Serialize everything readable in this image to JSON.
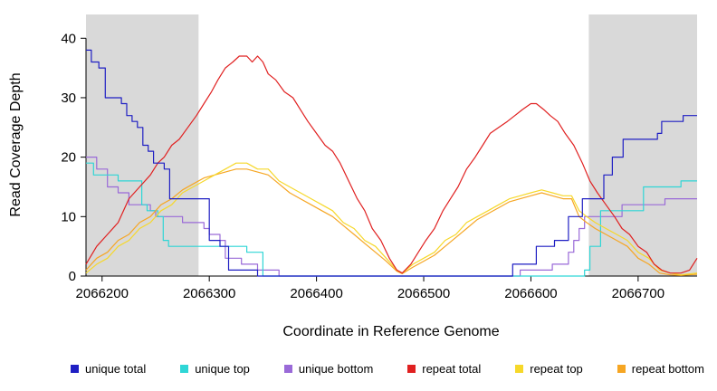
{
  "chart_data": {
    "type": "line",
    "title": "",
    "xlabel": "Coordinate in Reference Genome",
    "ylabel": "Read Coverage Depth",
    "xlim": [
      2066185,
      2066755
    ],
    "ylim": [
      0,
      44
    ],
    "xticks": [
      2066200,
      2066300,
      2066400,
      2066500,
      2066600,
      2066700
    ],
    "yticks": [
      0,
      10,
      20,
      30,
      40
    ],
    "grid": false,
    "legend_position": "bottom",
    "shade_color": "#d9d9d9",
    "background": "#ffffff",
    "shaded_regions": [
      [
        2066185,
        2066290
      ],
      [
        2066654,
        2066755
      ]
    ],
    "draw_order": [
      2,
      1,
      5,
      4,
      3,
      0
    ],
    "series": [
      {
        "name": "unique-total",
        "label": "unique total",
        "color": "#1f1fc3",
        "step": true,
        "points": [
          [
            2066185,
            38
          ],
          [
            2066190,
            36
          ],
          [
            2066197,
            35
          ],
          [
            2066203,
            30
          ],
          [
            2066218,
            29
          ],
          [
            2066223,
            27
          ],
          [
            2066228,
            26
          ],
          [
            2066233,
            25
          ],
          [
            2066238,
            22
          ],
          [
            2066243,
            21
          ],
          [
            2066248,
            19
          ],
          [
            2066258,
            18
          ],
          [
            2066263,
            13
          ],
          [
            2066295,
            13
          ],
          [
            2066300,
            6
          ],
          [
            2066310,
            5
          ],
          [
            2066318,
            1
          ],
          [
            2066340,
            1
          ],
          [
            2066345,
            0
          ],
          [
            2066578,
            0
          ],
          [
            2066583,
            2
          ],
          [
            2066600,
            2
          ],
          [
            2066605,
            5
          ],
          [
            2066618,
            5
          ],
          [
            2066622,
            6
          ],
          [
            2066630,
            6
          ],
          [
            2066635,
            10
          ],
          [
            2066645,
            10
          ],
          [
            2066648,
            13
          ],
          [
            2066665,
            13
          ],
          [
            2066668,
            17
          ],
          [
            2066673,
            17
          ],
          [
            2066676,
            20
          ],
          [
            2066683,
            20
          ],
          [
            2066686,
            23
          ],
          [
            2066715,
            23
          ],
          [
            2066718,
            24
          ],
          [
            2066722,
            26
          ],
          [
            2066738,
            26
          ],
          [
            2066742,
            27
          ],
          [
            2066755,
            27
          ]
        ]
      },
      {
        "name": "unique-top",
        "label": "unique top",
        "color": "#2fd6d6",
        "step": true,
        "points": [
          [
            2066185,
            19
          ],
          [
            2066192,
            17
          ],
          [
            2066210,
            17
          ],
          [
            2066215,
            16
          ],
          [
            2066232,
            16
          ],
          [
            2066237,
            12
          ],
          [
            2066242,
            11
          ],
          [
            2066252,
            10
          ],
          [
            2066257,
            6
          ],
          [
            2066262,
            5
          ],
          [
            2066330,
            5
          ],
          [
            2066335,
            4
          ],
          [
            2066345,
            4
          ],
          [
            2066350,
            0
          ],
          [
            2066645,
            0
          ],
          [
            2066650,
            1
          ],
          [
            2066655,
            5
          ],
          [
            2066662,
            5
          ],
          [
            2066665,
            11
          ],
          [
            2066700,
            11
          ],
          [
            2066705,
            15
          ],
          [
            2066735,
            15
          ],
          [
            2066740,
            16
          ],
          [
            2066755,
            16
          ]
        ]
      },
      {
        "name": "unique-bottom",
        "label": "unique bottom",
        "color": "#9a6ad8",
        "step": true,
        "points": [
          [
            2066185,
            20
          ],
          [
            2066195,
            18
          ],
          [
            2066205,
            15
          ],
          [
            2066215,
            14
          ],
          [
            2066225,
            12
          ],
          [
            2066245,
            11
          ],
          [
            2066250,
            10
          ],
          [
            2066270,
            10
          ],
          [
            2066275,
            9
          ],
          [
            2066295,
            8
          ],
          [
            2066300,
            7
          ],
          [
            2066310,
            6
          ],
          [
            2066315,
            3
          ],
          [
            2066330,
            2
          ],
          [
            2066340,
            2
          ],
          [
            2066345,
            1
          ],
          [
            2066360,
            1
          ],
          [
            2066365,
            0
          ],
          [
            2066585,
            0
          ],
          [
            2066590,
            1
          ],
          [
            2066615,
            1
          ],
          [
            2066620,
            2
          ],
          [
            2066630,
            2
          ],
          [
            2066635,
            4
          ],
          [
            2066640,
            6
          ],
          [
            2066645,
            8
          ],
          [
            2066650,
            10
          ],
          [
            2066680,
            10
          ],
          [
            2066685,
            12
          ],
          [
            2066720,
            12
          ],
          [
            2066725,
            13
          ],
          [
            2066755,
            13
          ]
        ]
      },
      {
        "name": "repeat-total",
        "label": "repeat total",
        "color": "#e02020",
        "step": false,
        "points": [
          [
            2066185,
            2
          ],
          [
            2066195,
            5
          ],
          [
            2066205,
            7
          ],
          [
            2066215,
            9
          ],
          [
            2066225,
            13
          ],
          [
            2066235,
            15
          ],
          [
            2066245,
            17
          ],
          [
            2066252,
            19
          ],
          [
            2066258,
            20
          ],
          [
            2066265,
            22
          ],
          [
            2066272,
            23
          ],
          [
            2066280,
            25
          ],
          [
            2066288,
            27
          ],
          [
            2066295,
            29
          ],
          [
            2066302,
            31
          ],
          [
            2066308,
            33
          ],
          [
            2066315,
            35
          ],
          [
            2066322,
            36
          ],
          [
            2066328,
            37
          ],
          [
            2066335,
            37
          ],
          [
            2066340,
            36
          ],
          [
            2066345,
            37
          ],
          [
            2066350,
            36
          ],
          [
            2066355,
            34
          ],
          [
            2066362,
            33
          ],
          [
            2066370,
            31
          ],
          [
            2066378,
            30
          ],
          [
            2066385,
            28
          ],
          [
            2066392,
            26
          ],
          [
            2066400,
            24
          ],
          [
            2066408,
            22
          ],
          [
            2066415,
            21
          ],
          [
            2066422,
            19
          ],
          [
            2066430,
            16
          ],
          [
            2066438,
            13
          ],
          [
            2066445,
            11
          ],
          [
            2066452,
            8
          ],
          [
            2066460,
            6
          ],
          [
            2066468,
            3
          ],
          [
            2066475,
            1
          ],
          [
            2066480,
            0.5
          ],
          [
            2066488,
            2
          ],
          [
            2066495,
            4
          ],
          [
            2066502,
            6
          ],
          [
            2066510,
            8
          ],
          [
            2066518,
            11
          ],
          [
            2066525,
            13
          ],
          [
            2066532,
            15
          ],
          [
            2066540,
            18
          ],
          [
            2066548,
            20
          ],
          [
            2066555,
            22
          ],
          [
            2066562,
            24
          ],
          [
            2066570,
            25
          ],
          [
            2066578,
            26
          ],
          [
            2066585,
            27
          ],
          [
            2066592,
            28
          ],
          [
            2066600,
            29
          ],
          [
            2066605,
            29
          ],
          [
            2066612,
            28
          ],
          [
            2066618,
            27
          ],
          [
            2066625,
            26
          ],
          [
            2066632,
            24
          ],
          [
            2066640,
            22
          ],
          [
            2066648,
            19
          ],
          [
            2066655,
            16
          ],
          [
            2066662,
            14
          ],
          [
            2066670,
            12
          ],
          [
            2066678,
            10
          ],
          [
            2066685,
            8
          ],
          [
            2066692,
            7
          ],
          [
            2066700,
            5
          ],
          [
            2066708,
            4
          ],
          [
            2066715,
            2
          ],
          [
            2066722,
            1
          ],
          [
            2066730,
            0.5
          ],
          [
            2066740,
            0.5
          ],
          [
            2066748,
            1
          ],
          [
            2066755,
            3
          ]
        ]
      },
      {
        "name": "repeat-top",
        "label": "repeat top",
        "color": "#f6d82a",
        "step": false,
        "points": [
          [
            2066185,
            0.5
          ],
          [
            2066195,
            2
          ],
          [
            2066205,
            3
          ],
          [
            2066215,
            5
          ],
          [
            2066225,
            6
          ],
          [
            2066235,
            8
          ],
          [
            2066245,
            9
          ],
          [
            2066255,
            11
          ],
          [
            2066265,
            12
          ],
          [
            2066275,
            14
          ],
          [
            2066285,
            15
          ],
          [
            2066295,
            16
          ],
          [
            2066305,
            17
          ],
          [
            2066315,
            18
          ],
          [
            2066325,
            19
          ],
          [
            2066335,
            19
          ],
          [
            2066345,
            18
          ],
          [
            2066355,
            18
          ],
          [
            2066365,
            16
          ],
          [
            2066375,
            15
          ],
          [
            2066385,
            14
          ],
          [
            2066395,
            13
          ],
          [
            2066405,
            12
          ],
          [
            2066415,
            11
          ],
          [
            2066425,
            9
          ],
          [
            2066435,
            8
          ],
          [
            2066445,
            6
          ],
          [
            2066455,
            5
          ],
          [
            2066465,
            3
          ],
          [
            2066475,
            1
          ],
          [
            2066480,
            0.5
          ],
          [
            2066490,
            2
          ],
          [
            2066500,
            3
          ],
          [
            2066510,
            4
          ],
          [
            2066520,
            6
          ],
          [
            2066530,
            7
          ],
          [
            2066540,
            9
          ],
          [
            2066550,
            10
          ],
          [
            2066560,
            11
          ],
          [
            2066570,
            12
          ],
          [
            2066580,
            13
          ],
          [
            2066590,
            13.5
          ],
          [
            2066600,
            14
          ],
          [
            2066610,
            14.5
          ],
          [
            2066620,
            14
          ],
          [
            2066630,
            13.5
          ],
          [
            2066638,
            13.5
          ],
          [
            2066645,
            11
          ],
          [
            2066652,
            10
          ],
          [
            2066660,
            9
          ],
          [
            2066670,
            8
          ],
          [
            2066680,
            7
          ],
          [
            2066690,
            6
          ],
          [
            2066700,
            4
          ],
          [
            2066710,
            3
          ],
          [
            2066720,
            1
          ],
          [
            2066730,
            0.5
          ],
          [
            2066740,
            0.2
          ],
          [
            2066755,
            0.5
          ]
        ]
      },
      {
        "name": "repeat-bottom",
        "label": "repeat bottom",
        "color": "#f6a623",
        "step": false,
        "points": [
          [
            2066185,
            1
          ],
          [
            2066195,
            3
          ],
          [
            2066205,
            4
          ],
          [
            2066215,
            6
          ],
          [
            2066225,
            7
          ],
          [
            2066235,
            9
          ],
          [
            2066245,
            10
          ],
          [
            2066255,
            12
          ],
          [
            2066265,
            13
          ],
          [
            2066275,
            14.5
          ],
          [
            2066285,
            15.5
          ],
          [
            2066295,
            16.5
          ],
          [
            2066305,
            17
          ],
          [
            2066315,
            17.5
          ],
          [
            2066325,
            18
          ],
          [
            2066335,
            18
          ],
          [
            2066345,
            17.5
          ],
          [
            2066355,
            17
          ],
          [
            2066365,
            15.5
          ],
          [
            2066375,
            14
          ],
          [
            2066385,
            13
          ],
          [
            2066395,
            12
          ],
          [
            2066405,
            11
          ],
          [
            2066415,
            10
          ],
          [
            2066425,
            8.5
          ],
          [
            2066435,
            7
          ],
          [
            2066445,
            5.5
          ],
          [
            2066455,
            4
          ],
          [
            2066465,
            2.5
          ],
          [
            2066475,
            0.8
          ],
          [
            2066480,
            0.4
          ],
          [
            2066490,
            1.5
          ],
          [
            2066500,
            2.5
          ],
          [
            2066510,
            3.5
          ],
          [
            2066520,
            5
          ],
          [
            2066530,
            6.5
          ],
          [
            2066540,
            8
          ],
          [
            2066550,
            9.5
          ],
          [
            2066560,
            10.5
          ],
          [
            2066570,
            11.5
          ],
          [
            2066580,
            12.5
          ],
          [
            2066590,
            13
          ],
          [
            2066600,
            13.5
          ],
          [
            2066610,
            14
          ],
          [
            2066620,
            13.5
          ],
          [
            2066630,
            13
          ],
          [
            2066638,
            13
          ],
          [
            2066645,
            10
          ],
          [
            2066652,
            9
          ],
          [
            2066660,
            8
          ],
          [
            2066670,
            7
          ],
          [
            2066680,
            6
          ],
          [
            2066690,
            5
          ],
          [
            2066700,
            3
          ],
          [
            2066710,
            2
          ],
          [
            2066720,
            0.5
          ],
          [
            2066730,
            0.2
          ],
          [
            2066740,
            0.1
          ],
          [
            2066755,
            0.3
          ]
        ]
      }
    ]
  }
}
